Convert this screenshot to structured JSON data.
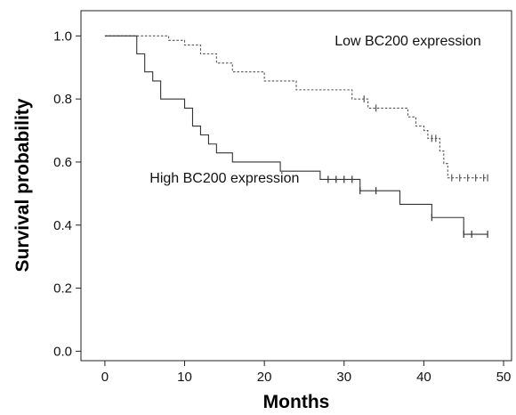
{
  "chart_data": {
    "type": "line",
    "title": "",
    "xlabel": "Months",
    "ylabel": "Survival probability",
    "xlim": [
      -3,
      51
    ],
    "ylim": [
      -0.03,
      1.08
    ],
    "xticks": [
      0,
      10,
      20,
      30,
      40,
      50
    ],
    "yticks": [
      0.0,
      0.2,
      0.4,
      0.6,
      0.8,
      1.0
    ],
    "xtick_labels": [
      "0",
      "10",
      "20",
      "30",
      "40",
      "50"
    ],
    "ytick_labels": [
      "0.0",
      "0.2",
      "0.4",
      "0.6",
      "0.8",
      "1.0"
    ],
    "grid": false,
    "series": [
      {
        "name": "Low BC200 expression",
        "style": "dashed",
        "color": "#555555",
        "steps": [
          [
            0,
            1.0
          ],
          [
            8,
            1.0
          ],
          [
            8,
            0.986
          ],
          [
            10,
            0.986
          ],
          [
            10,
            0.971
          ],
          [
            12,
            0.971
          ],
          [
            12,
            0.943
          ],
          [
            14,
            0.943
          ],
          [
            14,
            0.914
          ],
          [
            16,
            0.914
          ],
          [
            16,
            0.886
          ],
          [
            20,
            0.886
          ],
          [
            20,
            0.857
          ],
          [
            24,
            0.857
          ],
          [
            24,
            0.829
          ],
          [
            31,
            0.829
          ],
          [
            31,
            0.8
          ],
          [
            33,
            0.8
          ],
          [
            33,
            0.771
          ],
          [
            38,
            0.771
          ],
          [
            38,
            0.743
          ],
          [
            39,
            0.743
          ],
          [
            39,
            0.714
          ],
          [
            40,
            0.714
          ],
          [
            40,
            0.7
          ],
          [
            40.5,
            0.7
          ],
          [
            40.5,
            0.675
          ],
          [
            42,
            0.675
          ],
          [
            42,
            0.635
          ],
          [
            42.5,
            0.635
          ],
          [
            42.5,
            0.595
          ],
          [
            43,
            0.595
          ],
          [
            43,
            0.55
          ],
          [
            48,
            0.55
          ]
        ],
        "censored": [
          [
            32.5,
            0.8
          ],
          [
            34,
            0.771
          ],
          [
            41,
            0.675
          ],
          [
            41.5,
            0.675
          ],
          [
            43.5,
            0.55
          ],
          [
            44.5,
            0.55
          ],
          [
            45.5,
            0.55
          ],
          [
            46.5,
            0.55
          ],
          [
            47.5,
            0.55
          ],
          [
            48,
            0.55
          ]
        ]
      },
      {
        "name": "High BC200 expression",
        "style": "solid",
        "color": "#333333",
        "steps": [
          [
            0,
            1.0
          ],
          [
            4,
            1.0
          ],
          [
            4,
            0.943
          ],
          [
            5,
            0.943
          ],
          [
            5,
            0.886
          ],
          [
            6,
            0.886
          ],
          [
            6,
            0.857
          ],
          [
            7,
            0.857
          ],
          [
            7,
            0.8
          ],
          [
            10,
            0.8
          ],
          [
            10,
            0.771
          ],
          [
            11,
            0.771
          ],
          [
            11,
            0.714
          ],
          [
            12,
            0.714
          ],
          [
            12,
            0.686
          ],
          [
            13,
            0.686
          ],
          [
            13,
            0.657
          ],
          [
            14,
            0.657
          ],
          [
            14,
            0.629
          ],
          [
            16,
            0.629
          ],
          [
            16,
            0.6
          ],
          [
            22,
            0.6
          ],
          [
            22,
            0.571
          ],
          [
            27,
            0.571
          ],
          [
            27,
            0.545
          ],
          [
            32,
            0.545
          ],
          [
            32,
            0.509
          ],
          [
            37,
            0.509
          ],
          [
            37,
            0.466
          ],
          [
            41,
            0.466
          ],
          [
            41,
            0.424
          ],
          [
            45,
            0.424
          ],
          [
            45,
            0.371
          ],
          [
            48,
            0.371
          ]
        ],
        "censored": [
          [
            28,
            0.545
          ],
          [
            29,
            0.545
          ],
          [
            30,
            0.545
          ],
          [
            31,
            0.545
          ],
          [
            32,
            0.509
          ],
          [
            34,
            0.509
          ],
          [
            41,
            0.424
          ],
          [
            45,
            0.371
          ],
          [
            46,
            0.371
          ],
          [
            48,
            0.371
          ]
        ]
      }
    ],
    "annotations": [
      {
        "text": "Low BC200 expression",
        "x": 38,
        "y": 0.97
      },
      {
        "text": "High BC200 expression",
        "x": 15,
        "y": 0.535
      }
    ]
  }
}
